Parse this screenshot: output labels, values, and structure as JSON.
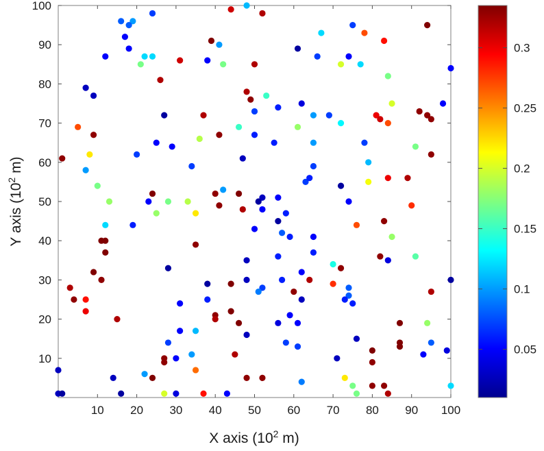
{
  "chart_data": {
    "type": "scatter",
    "title": "",
    "xlabel": "X axis (10",
    "xlabel_exp": "2",
    "xlabel_unit": " m)",
    "ylabel": "Y axis (10",
    "ylabel_exp": "2",
    "ylabel_unit": " m)",
    "xlim": [
      0,
      100
    ],
    "ylim": [
      0,
      100
    ],
    "xticks": [
      "10",
      "20",
      "30",
      "40",
      "50",
      "60",
      "70",
      "80",
      "90",
      "100"
    ],
    "yticks": [
      "10",
      "20",
      "30",
      "40",
      "50",
      "60",
      "70",
      "80",
      "90",
      "100"
    ],
    "grid": false,
    "colormap": "jet",
    "colorbar": {
      "min": 0.01,
      "max": 0.335,
      "ticks": [
        "0.05",
        "0.1",
        "0.15",
        "0.2",
        "0.25",
        "0.3"
      ]
    },
    "points": [
      [
        48,
        100,
        0.11
      ],
      [
        44,
        99,
        0.31
      ],
      [
        52,
        98,
        0.32
      ],
      [
        24,
        98,
        0.07
      ],
      [
        16,
        96,
        0.08
      ],
      [
        19,
        96,
        0.1
      ],
      [
        18,
        95,
        0.08
      ],
      [
        75,
        95,
        0.07
      ],
      [
        94,
        95,
        0.335
      ],
      [
        67,
        93,
        0.12
      ],
      [
        78,
        93,
        0.27
      ],
      [
        17,
        92,
        0.05
      ],
      [
        39,
        91,
        0.335
      ],
      [
        83,
        91,
        0.29
      ],
      [
        41,
        90,
        0.1
      ],
      [
        18,
        89,
        0.05
      ],
      [
        61,
        89,
        0.02
      ],
      [
        22,
        87,
        0.12
      ],
      [
        24,
        87,
        0.12
      ],
      [
        12,
        87,
        0.05
      ],
      [
        66,
        87,
        0.07
      ],
      [
        74,
        87,
        0.05
      ],
      [
        31,
        86,
        0.31
      ],
      [
        38,
        86,
        0.05
      ],
      [
        21,
        85,
        0.17
      ],
      [
        42,
        85,
        0.17
      ],
      [
        50,
        85,
        0.32
      ],
      [
        72,
        85,
        0.2
      ],
      [
        77,
        85,
        0.12
      ],
      [
        84,
        82,
        0.17
      ],
      [
        100,
        84,
        0.05
      ],
      [
        26,
        81,
        0.32
      ],
      [
        7,
        79,
        0.03
      ],
      [
        48,
        78,
        0.32
      ],
      [
        9,
        77,
        0.03
      ],
      [
        53,
        77,
        0.15
      ],
      [
        49,
        76,
        0.33
      ],
      [
        85,
        75,
        0.2
      ],
      [
        62,
        75,
        0.04
      ],
      [
        98,
        75,
        0.05
      ],
      [
        56,
        74,
        0.06
      ],
      [
        92,
        73,
        0.33
      ],
      [
        50,
        73,
        0.07
      ],
      [
        94,
        72,
        0.33
      ],
      [
        27,
        72,
        0.02
      ],
      [
        37,
        72,
        0.32
      ],
      [
        65,
        72,
        0.1
      ],
      [
        69,
        72,
        0.07
      ],
      [
        81,
        72,
        0.3
      ],
      [
        82,
        71,
        0.31
      ],
      [
        95,
        71,
        0.33
      ],
      [
        72,
        70,
        0.13
      ],
      [
        84,
        70,
        0.27
      ],
      [
        5,
        69,
        0.27
      ],
      [
        46,
        69,
        0.15
      ],
      [
        61,
        69,
        0.18
      ],
      [
        9,
        67,
        0.33
      ],
      [
        41,
        67,
        0.33
      ],
      [
        50,
        67,
        0.06
      ],
      [
        36,
        66,
        0.19
      ],
      [
        25,
        65,
        0.05
      ],
      [
        65,
        65,
        0.1
      ],
      [
        55,
        65,
        0.06
      ],
      [
        78,
        65,
        0.07
      ],
      [
        91,
        64,
        0.17
      ],
      [
        29,
        64,
        0.05
      ],
      [
        8,
        62,
        0.22
      ],
      [
        20,
        62,
        0.07
      ],
      [
        95,
        62,
        0.33
      ],
      [
        1,
        61,
        0.33
      ],
      [
        47,
        61,
        0.03
      ],
      [
        79,
        60,
        0.11
      ],
      [
        34,
        59,
        0.07
      ],
      [
        65,
        59,
        0.07
      ],
      [
        7,
        58,
        0.1
      ],
      [
        89,
        56,
        0.32
      ],
      [
        63,
        55,
        0.07
      ],
      [
        79,
        55,
        0.21
      ],
      [
        84,
        56,
        0.3
      ],
      [
        64,
        56,
        0.06
      ],
      [
        10,
        54,
        0.17
      ],
      [
        72,
        54,
        0.02
      ],
      [
        42,
        53,
        0.1
      ],
      [
        40,
        52,
        0.33
      ],
      [
        24,
        52,
        0.335
      ],
      [
        46,
        52,
        0.335
      ],
      [
        56,
        51,
        0.05
      ],
      [
        52,
        51,
        0.03
      ],
      [
        13,
        50,
        0.18
      ],
      [
        23,
        50,
        0.05
      ],
      [
        28,
        50,
        0.17
      ],
      [
        33,
        50,
        0.19
      ],
      [
        51,
        50,
        0.02
      ],
      [
        74,
        50,
        0.05
      ],
      [
        90,
        49,
        0.28
      ],
      [
        41,
        49,
        0.33
      ],
      [
        52,
        48,
        0.05
      ],
      [
        47,
        48,
        0.32
      ],
      [
        25,
        47,
        0.18
      ],
      [
        35,
        47,
        0.22
      ],
      [
        58,
        47,
        0.06
      ],
      [
        56,
        45,
        0.02
      ],
      [
        83,
        45,
        0.33
      ],
      [
        12,
        44,
        0.12
      ],
      [
        19,
        44,
        0.06
      ],
      [
        76,
        44,
        0.27
      ],
      [
        50,
        43,
        0.05
      ],
      [
        57,
        42,
        0.08
      ],
      [
        59,
        41,
        0.06
      ],
      [
        65,
        41,
        0.05
      ],
      [
        85,
        41,
        0.18
      ],
      [
        11,
        40,
        0.335
      ],
      [
        12,
        40,
        0.335
      ],
      [
        35,
        39,
        0.33
      ],
      [
        12,
        37,
        0.335
      ],
      [
        65,
        37,
        0.06
      ],
      [
        56,
        36,
        0.06
      ],
      [
        82,
        36,
        0.33
      ],
      [
        91,
        36,
        0.16
      ],
      [
        48,
        35,
        0.03
      ],
      [
        84,
        35,
        0.04
      ],
      [
        70,
        34,
        0.14
      ],
      [
        72,
        33,
        0.33
      ],
      [
        28,
        33,
        0.02
      ],
      [
        9,
        32,
        0.335
      ],
      [
        62,
        32,
        0.05
      ],
      [
        11,
        30,
        0.33
      ],
      [
        48,
        30,
        0.03
      ],
      [
        57,
        30,
        0.06
      ],
      [
        64,
        30,
        0.32
      ],
      [
        100,
        30,
        0.02
      ],
      [
        38,
        29,
        0.02
      ],
      [
        44,
        29,
        0.335
      ],
      [
        70,
        29,
        0.28
      ],
      [
        3,
        28,
        0.32
      ],
      [
        52,
        28,
        0.07
      ],
      [
        74,
        28,
        0.08
      ],
      [
        51,
        27,
        0.09
      ],
      [
        60,
        27,
        0.33
      ],
      [
        95,
        27,
        0.32
      ],
      [
        74,
        26,
        0.08
      ],
      [
        4,
        25,
        0.33
      ],
      [
        7,
        25,
        0.29
      ],
      [
        38,
        25,
        0.06
      ],
      [
        62,
        25,
        0.03
      ],
      [
        73,
        25,
        0.06
      ],
      [
        31,
        24,
        0.05
      ],
      [
        75,
        24,
        0.06
      ],
      [
        7,
        22,
        0.3
      ],
      [
        44,
        22,
        0.335
      ],
      [
        40,
        21,
        0.33
      ],
      [
        59,
        21,
        0.05
      ],
      [
        15,
        20,
        0.32
      ],
      [
        40,
        20,
        0.32
      ],
      [
        56,
        19,
        0.04
      ],
      [
        46,
        19,
        0.335
      ],
      [
        87,
        19,
        0.335
      ],
      [
        61,
        19,
        0.05
      ],
      [
        94,
        19,
        0.18
      ],
      [
        35,
        17,
        0.11
      ],
      [
        31,
        17,
        0.05
      ],
      [
        48,
        16,
        0.03
      ],
      [
        76,
        15,
        0.03
      ],
      [
        28,
        14,
        0.07
      ],
      [
        58,
        14,
        0.07
      ],
      [
        95,
        14,
        0.08
      ],
      [
        87,
        14,
        0.335
      ],
      [
        87,
        13,
        0.335
      ],
      [
        61,
        13,
        0.07
      ],
      [
        80,
        12,
        0.335
      ],
      [
        99,
        12,
        0.04
      ],
      [
        45,
        11,
        0.32
      ],
      [
        34,
        11,
        0.1
      ],
      [
        93,
        11,
        0.05
      ],
      [
        27,
        10,
        0.33
      ],
      [
        30,
        10,
        0.05
      ],
      [
        71,
        10,
        0.03
      ],
      [
        27,
        9,
        0.33
      ],
      [
        80,
        9,
        0.33
      ],
      [
        35,
        7,
        0.26
      ],
      [
        0,
        7,
        0.03
      ],
      [
        22,
        6,
        0.1
      ],
      [
        14,
        5,
        0.03
      ],
      [
        24,
        5,
        0.335
      ],
      [
        48,
        5,
        0.33
      ],
      [
        52,
        5,
        0.33
      ],
      [
        73,
        5,
        0.22
      ],
      [
        62,
        4,
        0.09
      ],
      [
        80,
        3,
        0.33
      ],
      [
        83,
        3,
        0.33
      ],
      [
        75,
        3,
        0.17
      ],
      [
        100,
        3,
        0.12
      ],
      [
        0,
        1,
        0.03
      ],
      [
        1,
        1,
        0.02
      ],
      [
        16,
        1,
        0.02
      ],
      [
        27,
        1,
        0.2
      ],
      [
        30,
        1,
        0.04
      ],
      [
        37,
        1,
        0.29
      ],
      [
        43,
        1,
        0.05
      ],
      [
        76,
        1,
        0.17
      ],
      [
        84,
        1,
        0.32
      ]
    ]
  }
}
